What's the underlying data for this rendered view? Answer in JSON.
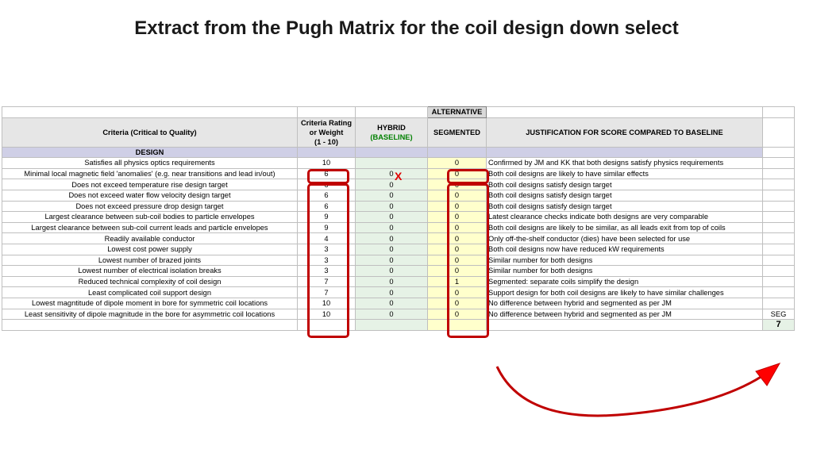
{
  "title": "Extract from the Pugh Matrix for the coil design down select",
  "header": {
    "alternative": "ALTERNATIVE",
    "criteria": "Criteria (Critical to Quality)",
    "rating": [
      "Criteria Rating",
      "or Weight",
      "(1 - 10)"
    ],
    "hybrid": "HYBRID",
    "baseline": "(BASELINE)",
    "segmented": "SEGMENTED",
    "justification": "JUSTIFICATION FOR SCORE COMPARED TO BASELINE"
  },
  "section": "DESIGN",
  "rows": [
    {
      "criteria": "Satisfies all physics optics requirements",
      "weight": "10",
      "hybrid": "",
      "segmented": "0",
      "justification": "Confirmed by JM and KK that both designs satisfy physics requirements"
    },
    {
      "criteria": "Minimal local magnetic field 'anomalies' (e.g. near transitions and lead in/out)",
      "weight": "6",
      "hybrid": "0",
      "segmented": "0",
      "justification": "Both coil designs are likely to have similar effects"
    },
    {
      "criteria": "Does not exceed temperature rise design target",
      "weight": "6",
      "hybrid": "0",
      "segmented": "0",
      "justification": "Both coil designs satisfy design target"
    },
    {
      "criteria": "Does not exceed water flow velocity design target",
      "weight": "6",
      "hybrid": "0",
      "segmented": "0",
      "justification": "Both coil designs satisfy design target"
    },
    {
      "criteria": "Does not exceed pressure drop design target",
      "weight": "6",
      "hybrid": "0",
      "segmented": "0",
      "justification": "Both coil designs satisfy design target"
    },
    {
      "criteria": "Largest clearance between sub-coil bodies to particle envelopes",
      "weight": "9",
      "hybrid": "0",
      "segmented": "0",
      "justification": "Latest clearance checks indicate both designs are very comparable"
    },
    {
      "criteria": "Largest clearance between sub-coil current leads and particle envelopes",
      "weight": "9",
      "hybrid": "0",
      "segmented": "0",
      "justification": "Both coil designs are likely to be similar, as all leads exit from top of coils"
    },
    {
      "criteria": "Readily available conductor",
      "weight": "4",
      "hybrid": "0",
      "segmented": "0",
      "justification": "Only off-the-shelf conductor (dies) have been selected for use"
    },
    {
      "criteria": "Lowest cost power supply",
      "weight": "3",
      "hybrid": "0",
      "segmented": "0",
      "justification": "Both coil designs now have reduced kW requirements"
    },
    {
      "criteria": "Lowest number of brazed joints",
      "weight": "3",
      "hybrid": "0",
      "segmented": "0",
      "justification": "Similar number for both designs"
    },
    {
      "criteria": "Lowest number of electrical isolation breaks",
      "weight": "3",
      "hybrid": "0",
      "segmented": "0",
      "justification": "Similar number for both designs"
    },
    {
      "criteria": "Reduced technical complexity of coil design",
      "weight": "7",
      "hybrid": "0",
      "segmented": "1",
      "justification": "Segmented: separate coils simplify the design"
    },
    {
      "criteria": "Least complicated coil support design",
      "weight": "7",
      "hybrid": "0",
      "segmented": "0",
      "justification": "Support design for both coil designs are likely to have similar challenges"
    },
    {
      "criteria": "Lowest magntitude of dipole moment in bore for symmetric coil locations",
      "weight": "10",
      "hybrid": "0",
      "segmented": "0",
      "justification": "No difference between hybrid and segmented as per JM"
    },
    {
      "criteria": "Least sensitivity of dipole magnitude in the bore for asymmetric coil locations",
      "weight": "10",
      "hybrid": "0",
      "segmented": "0",
      "justification": "No difference between hybrid and segmented as per JM"
    }
  ],
  "seg_label": "SEG",
  "seg_total": "7",
  "x_mark": "X"
}
